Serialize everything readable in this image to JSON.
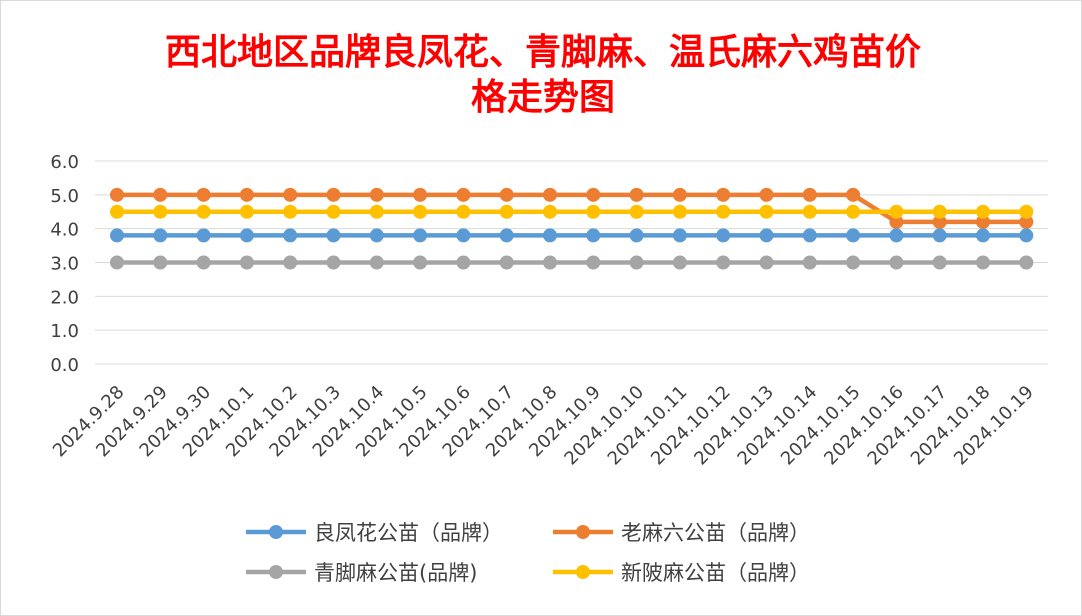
{
  "chart_data": {
    "type": "line",
    "title_lines": [
      "西北地区品牌良凤花、青脚麻、温氏麻六鸡苗价",
      "格走势图"
    ],
    "xlabel": "",
    "ylabel": "",
    "ylim": [
      0,
      6
    ],
    "yticks": [
      "0.0",
      "1.0",
      "2.0",
      "3.0",
      "4.0",
      "5.0",
      "6.0"
    ],
    "grid": true,
    "legend_position": "bottom",
    "categories": [
      "2024.9.28",
      "2024.9.29",
      "2024.9.30",
      "2024.10.1",
      "2024.10.2",
      "2024.10.3",
      "2024.10.4",
      "2024.10.5",
      "2024.10.6",
      "2024.10.7",
      "2024.10.8",
      "2024.10.9",
      "2024.10.10",
      "2024.10.11",
      "2024.10.12",
      "2024.10.13",
      "2024.10.14",
      "2024.10.15",
      "2024.10.16",
      "2024.10.17",
      "2024.10.18",
      "2024.10.19"
    ],
    "series": [
      {
        "name": "良凤花公苗（品牌）",
        "color": "#5b9bd5",
        "values": [
          3.8,
          3.8,
          3.8,
          3.8,
          3.8,
          3.8,
          3.8,
          3.8,
          3.8,
          3.8,
          3.8,
          3.8,
          3.8,
          3.8,
          3.8,
          3.8,
          3.8,
          3.8,
          3.8,
          3.8,
          3.8,
          3.8
        ]
      },
      {
        "name": "老麻六公苗（品牌）",
        "color": "#ed7d31",
        "values": [
          5.0,
          5.0,
          5.0,
          5.0,
          5.0,
          5.0,
          5.0,
          5.0,
          5.0,
          5.0,
          5.0,
          5.0,
          5.0,
          5.0,
          5.0,
          5.0,
          5.0,
          5.0,
          4.2,
          4.2,
          4.2,
          4.2
        ]
      },
      {
        "name": "青脚麻公苗(品牌)",
        "color": "#a5a5a5",
        "values": [
          3.0,
          3.0,
          3.0,
          3.0,
          3.0,
          3.0,
          3.0,
          3.0,
          3.0,
          3.0,
          3.0,
          3.0,
          3.0,
          3.0,
          3.0,
          3.0,
          3.0,
          3.0,
          3.0,
          3.0,
          3.0,
          3.0
        ]
      },
      {
        "name": "新陂麻公苗（品牌）",
        "color": "#ffc000",
        "values": [
          4.5,
          4.5,
          4.5,
          4.5,
          4.5,
          4.5,
          4.5,
          4.5,
          4.5,
          4.5,
          4.5,
          4.5,
          4.5,
          4.5,
          4.5,
          4.5,
          4.5,
          4.5,
          4.5,
          4.5,
          4.5,
          4.5
        ]
      }
    ]
  }
}
